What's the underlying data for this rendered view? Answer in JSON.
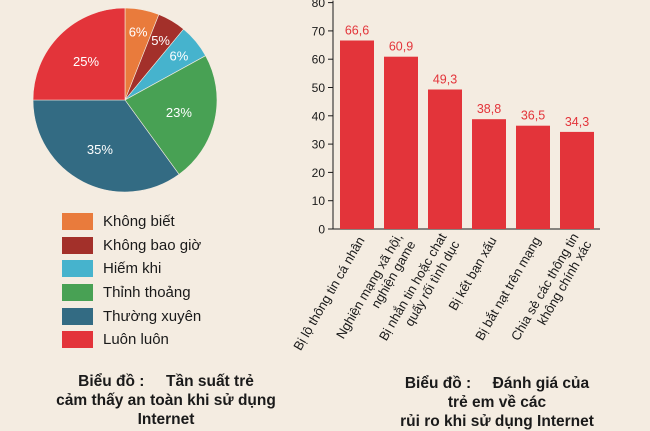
{
  "chart_data": [
    {
      "type": "pie",
      "slices": [
        {
          "label": "Không biết",
          "value": 6,
          "color": "#e97b3c"
        },
        {
          "label": "Không bao giờ",
          "value": 5,
          "color": "#a3302a"
        },
        {
          "label": "Hiếm khi",
          "value": 6,
          "color": "#46b3cd"
        },
        {
          "label": "Thỉnh thoảng",
          "value": 23,
          "color": "#48a154"
        },
        {
          "label": "Thường xuyên",
          "value": 35,
          "color": "#336b83"
        },
        {
          "label": "Luôn luôn",
          "value": 25,
          "color": "#e3343a"
        }
      ],
      "slice_labels": [
        "6%",
        "5%",
        "6%",
        "23%",
        "35%",
        "25%"
      ],
      "caption": [
        "Biểu đồ :     Tần suất trẻ",
        "cảm thấy an toàn khi sử dụng",
        "Internet"
      ]
    },
    {
      "type": "bar",
      "categories": [
        [
          "Bị lộ thông tin cá nhân"
        ],
        [
          "Nghiện mạng xã hội,",
          "nghiện game"
        ],
        [
          "Bị nhắn tin hoặc chat",
          "quấy rối tình dục"
        ],
        [
          "Bị kết bạn xấu"
        ],
        [
          "Bị bắt nạt trên mạng"
        ],
        [
          "Chia sẻ các thông tin",
          "không chính xác"
        ]
      ],
      "values": [
        66.6,
        60.9,
        49.3,
        38.8,
        36.5,
        34.3
      ],
      "value_labels": [
        "66,6",
        "60,9",
        "49,3",
        "38,8",
        "36,5",
        "34,3"
      ],
      "ylim": [
        0,
        80
      ],
      "yticks": [
        "0",
        "10",
        "20",
        "30",
        "40",
        "50",
        "60",
        "70",
        "80"
      ],
      "bar_color": "#e3343a",
      "caption": [
        "Biểu đồ :     Đánh giá của",
        "trẻ em về các",
        "rủi ro khi sử dụng Internet"
      ]
    }
  ]
}
